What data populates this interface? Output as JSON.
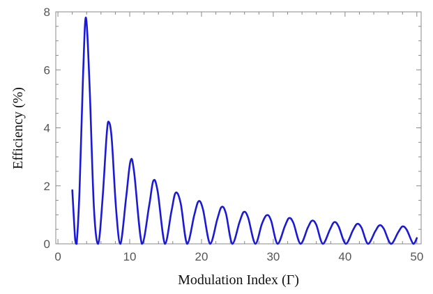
{
  "chart_data": {
    "type": "line",
    "title": "",
    "xlabel": "Modulation Index (Γ)",
    "ylabel": "Efficiency (%)",
    "xlim": [
      -0.3,
      50.6
    ],
    "ylim": [
      0,
      8
    ],
    "xticks": [
      0,
      10,
      20,
      30,
      40,
      50
    ],
    "yticks": [
      0,
      2,
      4,
      6,
      8
    ],
    "grid": false,
    "legend": "none",
    "series": [
      {
        "color": "#1a1ad6",
        "x": [
          2.0,
          2.4,
          2.6,
          3.0,
          3.5,
          3.9,
          4.4,
          5.0,
          5.6,
          6.2,
          6.8,
          7.1,
          7.5,
          8.1,
          8.7,
          9.5,
          10.1,
          10.6,
          11.7,
          12.7,
          13.3,
          13.9,
          14.9,
          15.8,
          16.4,
          17.1,
          18.0,
          19.0,
          19.6,
          20.2,
          21.2,
          22.2,
          22.8,
          23.4,
          24.3,
          25.3,
          25.9,
          26.5,
          27.5,
          28.4,
          29.1,
          29.7,
          30.6,
          31.6,
          32.2,
          32.8,
          33.8,
          34.8,
          35.4,
          36.0,
          36.9,
          37.9,
          38.5,
          39.1,
          40.1,
          41.1,
          41.7,
          42.3,
          43.2,
          44.2,
          44.8,
          45.4,
          46.4,
          47.4,
          48.0,
          48.6,
          49.5,
          50.0
        ],
        "y": [
          1.85,
          0.15,
          0.0,
          1.8,
          5.8,
          7.8,
          5.5,
          1.3,
          0.0,
          1.5,
          3.8,
          4.2,
          3.6,
          1.2,
          0.0,
          1.6,
          2.85,
          2.5,
          0.0,
          1.3,
          2.18,
          1.8,
          0.0,
          1.1,
          1.76,
          1.4,
          0.0,
          1.0,
          1.47,
          1.2,
          0.0,
          0.85,
          1.27,
          1.05,
          0.0,
          0.75,
          1.1,
          0.9,
          0.0,
          0.68,
          0.99,
          0.8,
          0.0,
          0.6,
          0.89,
          0.72,
          0.0,
          0.55,
          0.8,
          0.65,
          0.0,
          0.5,
          0.75,
          0.6,
          0.0,
          0.47,
          0.69,
          0.55,
          0.0,
          0.43,
          0.64,
          0.52,
          0.0,
          0.4,
          0.6,
          0.48,
          0.0,
          0.2
        ]
      }
    ]
  }
}
